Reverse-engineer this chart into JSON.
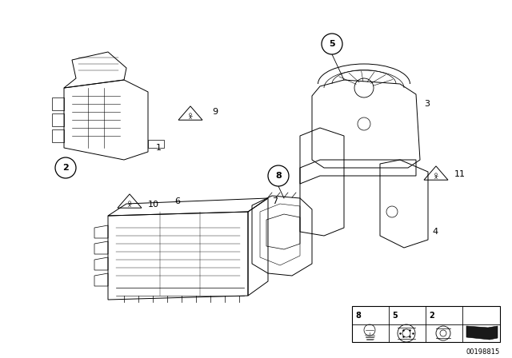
{
  "bg_color": "#ffffff",
  "line_color": "#000000",
  "fig_id": "00198815",
  "lw": 0.7,
  "fig_w": 6.4,
  "fig_h": 4.48,
  "dpi": 100,
  "xlim": [
    0,
    640
  ],
  "ylim": [
    0,
    448
  ]
}
